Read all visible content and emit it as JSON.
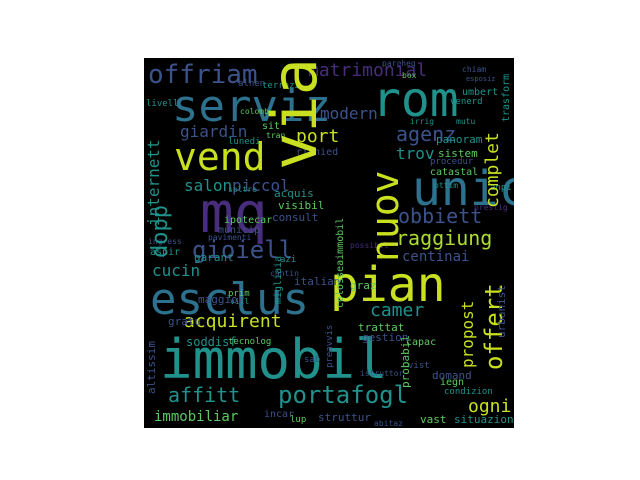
{
  "palette": {
    "yellow": "#c8e020",
    "green": "#5ec962",
    "teal": "#21918c",
    "blue": "#3b528b",
    "purple": "#472d7b",
    "dark": "#440154",
    "lime": "#addc30",
    "aqua": "#28ae80",
    "background": "#000000"
  },
  "words": {
    "immobil": "immobil",
    "mq": "mq",
    "pian": "pian",
    "esclus": "esclus",
    "serviz": "serviz",
    "rom": "rom",
    "vend": "vend",
    "via": "via",
    "unic": "unic",
    "nuov": "nuov",
    "offriam": "offriam",
    "matrimonial": "matrimonial",
    "gioiell": "gioiell",
    "portafogl": "portafogl",
    "acquirent": "acquirent",
    "offert": "offert",
    "raggiung": "raggiung",
    "obbiett": "obbiett",
    "agenz": "agenz",
    "trov": "trov",
    "complet": "complet",
    "camer": "camer",
    "affitt": "affitt",
    "immobiliar": "immobiliar",
    "dopp": "dopp",
    "salon": "salon",
    "piccol": "piccol",
    "cucin": "cucin",
    "port": "port",
    "giardin": "giardin",
    "modern": "modern",
    "internett": "internett",
    "propost": "propost",
    "ogni": "ogni",
    "centinai": "centinai",
    "sistem": "sistem",
    "panoram": "panoram",
    "gestion": "gestion",
    "struttur": "struttur",
    "soddisf": "soddisf",
    "maggior": "maggior",
    "italian": "italian",
    "acquis": "acquis",
    "visibil": "visibil",
    "consult": "consult",
    "altissim": "altissim",
    "tecnolog": "tecnolog",
    "trattat": "trattat",
    "catastal": "catastal",
    "umbert": "umbert",
    "terrazz": "terrazz",
    "garant": "garant",
    "graz": "graz",
    "domand": "domand",
    "vast": "vast",
    "situazion": "situazion",
    "probabil": "probabil",
    "colosseo": "colosseaimmobil",
    "ipotecar": "ipotecar",
    "municip": "municip",
    "aspir": "aspir",
    "richied": "richied",
    "condizion": "condizion",
    "urbanist": "urbanist",
    "gratu": "gratu",
    "capac": "capac",
    "prim": "prim",
    "ingress": "ingress",
    "procedur": "procedur",
    "colomb": "colomb",
    "venerd": "venerd",
    "livell": "livell",
    "alnen": "alnen",
    "ottim": "ottim",
    "incar": "incar",
    "sab": "sab",
    "chiam": "chiam",
    "lunedi": "lunedi",
    "iegn": "iegn",
    "possibil": "possibil",
    "azi": "azi",
    "vill": "vill",
    "soltre": "soltre",
    "pavimenti": "pavimenti",
    "tran": "tran",
    "sit": "sit",
    "migliaia": "migliaia",
    "trasform": "trasform",
    "anpi": "anpi",
    "prestig": "prestig",
    "abitaz": "abitaz",
    "preavvis": "preavvis",
    "istruttor": "istruttor",
    "esposiz": "esposiz",
    "parcheg": "parcheg",
    "vist": "vist",
    "lup": "lup",
    "cantin": "cantin",
    "mutu": "mutu",
    "irrig": "irrig",
    "box": "box"
  }
}
